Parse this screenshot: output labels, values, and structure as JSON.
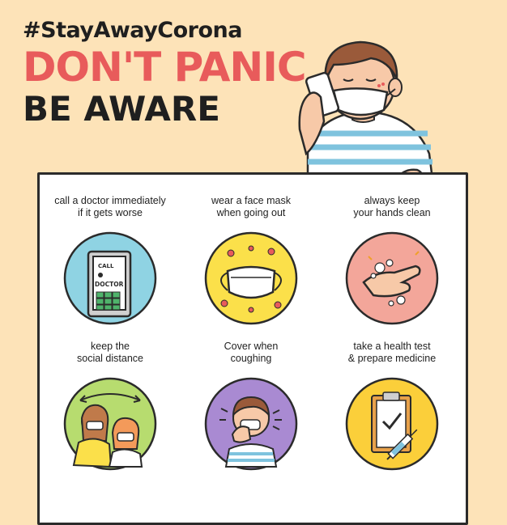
{
  "header": {
    "hashtag": "#StayAwayCorona",
    "headline_1": "DON'T PANIC",
    "headline_2": "BE AWARE"
  },
  "tips": [
    {
      "label": "call a doctor immediately\nif it gets worse",
      "icon": "doctor-phone-icon",
      "bg": "#8fd3e3"
    },
    {
      "label": "wear a face mask\nwhen going out",
      "icon": "face-mask-icon",
      "bg": "#fbe04a"
    },
    {
      "label": "always keep\nyour hands clean",
      "icon": "hand-wash-icon",
      "bg": "#f3a69a"
    },
    {
      "label": "keep the\nsocial distance",
      "icon": "social-distance-icon",
      "bg": "#b7dc6f"
    },
    {
      "label": "Cover when\ncoughing",
      "icon": "coughing-icon",
      "bg": "#a98ad2"
    },
    {
      "label": "take a health test\n&  prepare medicine",
      "icon": "health-test-icon",
      "bg": "#fbcf3a"
    }
  ],
  "phone_text": {
    "call": "CALL",
    "doctor": "DOCTOR"
  },
  "colors": {
    "background": "#fde3b8",
    "accent_red": "#e85b5b",
    "ink": "#1f1f1f",
    "stripe_blue": "#7fc3de"
  }
}
